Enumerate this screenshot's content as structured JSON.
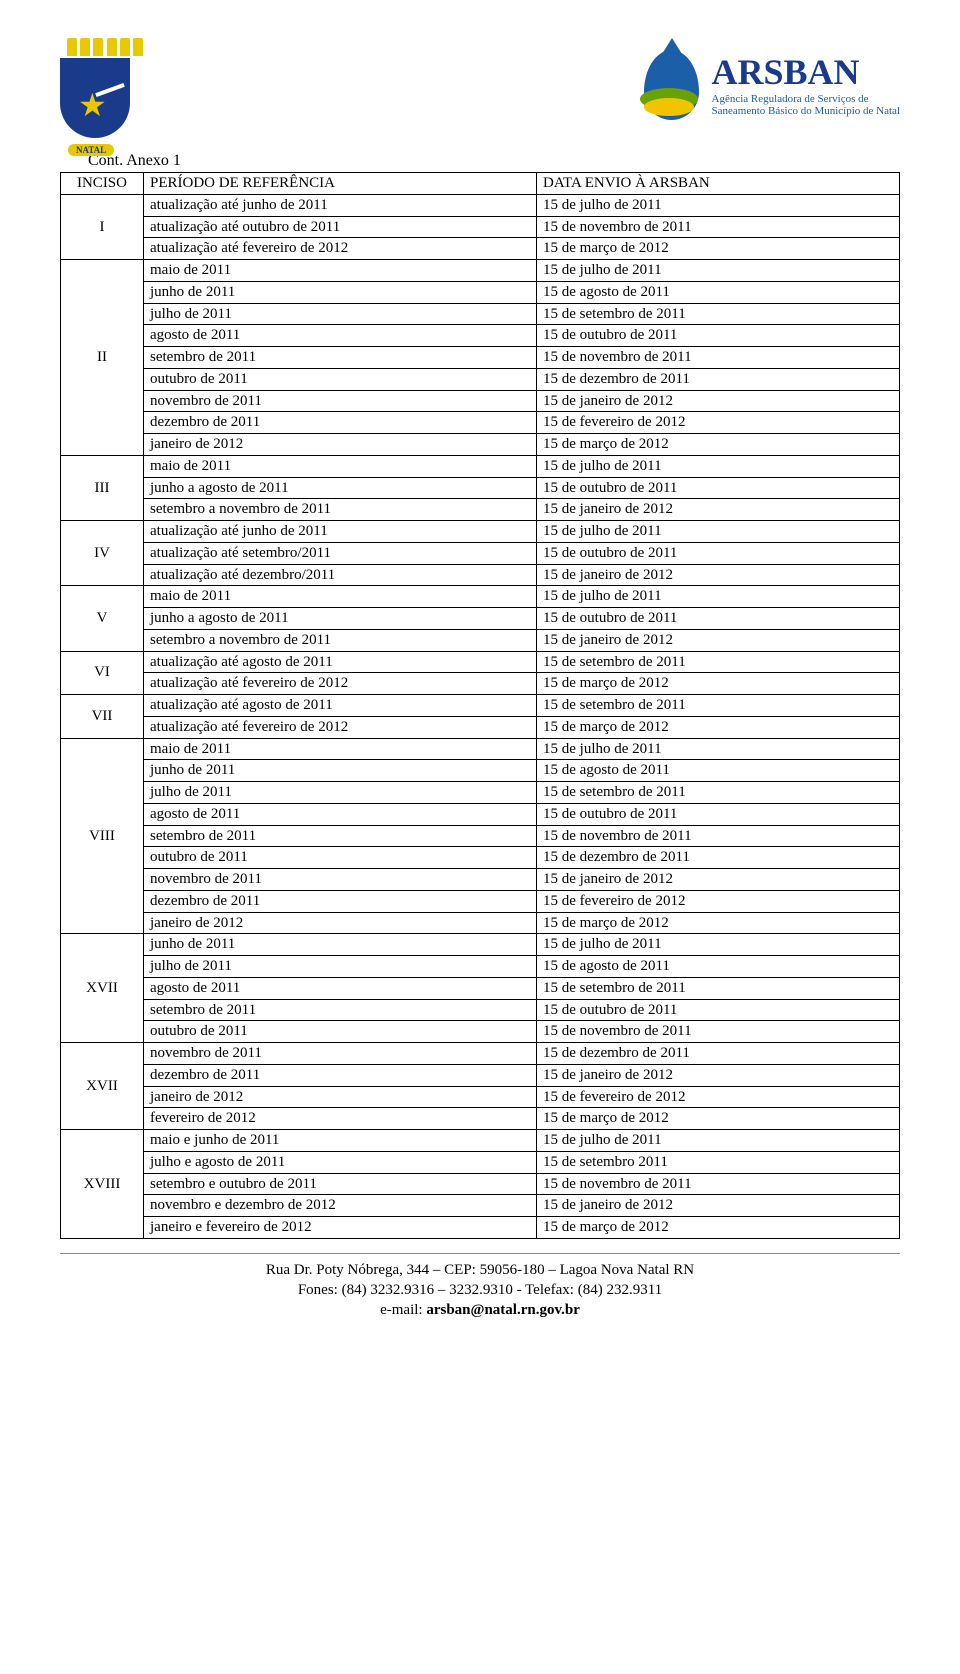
{
  "header": {
    "natal_tag": "NATAL",
    "arsban_title": "ARSBAN",
    "arsban_sub1": "Agência Reguladora de Serviços de",
    "arsban_sub2": "Saneamento Básico do Município de Natal"
  },
  "cont_label": "Cont. Anexo 1",
  "table_headers": {
    "inciso": "INCISO",
    "periodo": "PERÍODO DE REFERÊNCIA",
    "data_envio": "DATA ENVIO À ARSBAN"
  },
  "groups": [
    {
      "inciso": "I",
      "rows": [
        {
          "ref": "atualização até junho de 2011",
          "envio": "15 de julho de 2011"
        },
        {
          "ref": "atualização até outubro de 2011",
          "envio": "15 de novembro de 2011"
        },
        {
          "ref": "atualização até fevereiro de 2012",
          "envio": "15 de março de 2012"
        }
      ]
    },
    {
      "inciso": "II",
      "rows": [
        {
          "ref": "maio de 2011",
          "envio": "15 de julho de 2011"
        },
        {
          "ref": "junho de 2011",
          "envio": "15 de agosto de 2011"
        },
        {
          "ref": "julho de 2011",
          "envio": "15 de setembro de 2011"
        },
        {
          "ref": "agosto de 2011",
          "envio": "15 de outubro de 2011"
        },
        {
          "ref": "setembro de 2011",
          "envio": "15 de novembro de 2011"
        },
        {
          "ref": "outubro de 2011",
          "envio": "15 de dezembro de 2011"
        },
        {
          "ref": "novembro de 2011",
          "envio": "15 de janeiro de 2012"
        },
        {
          "ref": "dezembro de 2011",
          "envio": "15 de fevereiro de 2012"
        },
        {
          "ref": "janeiro de 2012",
          "envio": "15 de março de 2012"
        }
      ]
    },
    {
      "inciso": "III",
      "rows": [
        {
          "ref": "maio de 2011",
          "envio": "15 de julho de 2011"
        },
        {
          "ref": "junho a agosto de 2011",
          "envio": "15 de outubro de 2011"
        },
        {
          "ref": "setembro a novembro de 2011",
          "envio": "15 de janeiro de 2012"
        }
      ]
    },
    {
      "inciso": "IV",
      "rows": [
        {
          "ref": "atualização até junho de 2011",
          "envio": "15 de julho de 2011"
        },
        {
          "ref": "atualização até setembro/2011",
          "envio": "15 de outubro de 2011"
        },
        {
          "ref": "atualização até dezembro/2011",
          "envio": "15 de janeiro de 2012"
        }
      ]
    },
    {
      "inciso": "V",
      "rows": [
        {
          "ref": "maio de 2011",
          "envio": "15 de julho de 2011"
        },
        {
          "ref": "junho a agosto de 2011",
          "envio": "15 de outubro de 2011"
        },
        {
          "ref": "setembro a novembro de 2011",
          "envio": "15 de janeiro de 2012"
        }
      ]
    },
    {
      "inciso": "VI",
      "rows": [
        {
          "ref": "atualização até agosto de 2011",
          "envio": "15 de setembro de 2011"
        },
        {
          "ref": "atualização até fevereiro de 2012",
          "envio": "15 de março de 2012"
        }
      ]
    },
    {
      "inciso": "VII",
      "rows": [
        {
          "ref": "atualização até agosto de 2011",
          "envio": "15 de setembro de 2011"
        },
        {
          "ref": "atualização até fevereiro de 2012",
          "envio": "15 de março de 2012"
        }
      ]
    },
    {
      "inciso": "VIII",
      "rows": [
        {
          "ref": "maio de 2011",
          "envio": "15 de julho de 2011"
        },
        {
          "ref": "junho de 2011",
          "envio": "15 de agosto de 2011"
        },
        {
          "ref": "julho de 2011",
          "envio": "15 de setembro de 2011"
        },
        {
          "ref": "agosto de 2011",
          "envio": "15 de outubro de 2011"
        },
        {
          "ref": "setembro de 2011",
          "envio": "15 de novembro de 2011"
        },
        {
          "ref": "outubro de 2011",
          "envio": "15 de dezembro de 2011"
        },
        {
          "ref": "novembro de 2011",
          "envio": "15 de janeiro de 2012"
        },
        {
          "ref": "dezembro de 2011",
          "envio": "15 de fevereiro de 2012"
        },
        {
          "ref": "janeiro de 2012",
          "envio": "15 de março de 2012"
        }
      ]
    },
    {
      "inciso": "XVII",
      "rows": [
        {
          "ref": "junho de 2011",
          "envio": "15 de julho de 2011"
        },
        {
          "ref": "julho de 2011",
          "envio": "15 de agosto de 2011"
        },
        {
          "ref": "agosto de 2011",
          "envio": "15 de setembro de 2011"
        },
        {
          "ref": "setembro de 2011",
          "envio": "15 de outubro de 2011"
        },
        {
          "ref": "outubro de 2011",
          "envio": "15 de novembro de 2011"
        }
      ]
    },
    {
      "inciso": "XVII",
      "rows": [
        {
          "ref": "novembro de 2011",
          "envio": "15 de dezembro de 2011"
        },
        {
          "ref": "dezembro de 2011",
          "envio": "15 de janeiro de 2012"
        },
        {
          "ref": "janeiro de 2012",
          "envio": "15 de fevereiro de 2012"
        },
        {
          "ref": "fevereiro de 2012",
          "envio": "15 de março de 2012"
        }
      ]
    },
    {
      "inciso": "XVIII",
      "rows": [
        {
          "ref": "maio e junho de 2011",
          "envio": "15 de julho de 2011"
        },
        {
          "ref": "julho e agosto de 2011",
          "envio": "15 de setembro 2011"
        },
        {
          "ref": "setembro e outubro de 2011",
          "envio": "15 de novembro de 2011"
        },
        {
          "ref": "novembro e dezembro de 2012",
          "envio": "15 de janeiro de 2012"
        },
        {
          "ref": "janeiro e fevereiro de 2012",
          "envio": "15 de março de 2012"
        }
      ]
    }
  ],
  "footer": {
    "line1a": "Rua Dr. Poty Nóbrega,  344 – CEP: 59056-180 – Lagoa Nova   Natal  RN",
    "line2": "Fones: (84) 3232.9316 – 3232.9310  -   Telefax: (84) 232.9311",
    "line3a": "e-mail: ",
    "line3b": "arsban@natal.rn.gov.br"
  }
}
